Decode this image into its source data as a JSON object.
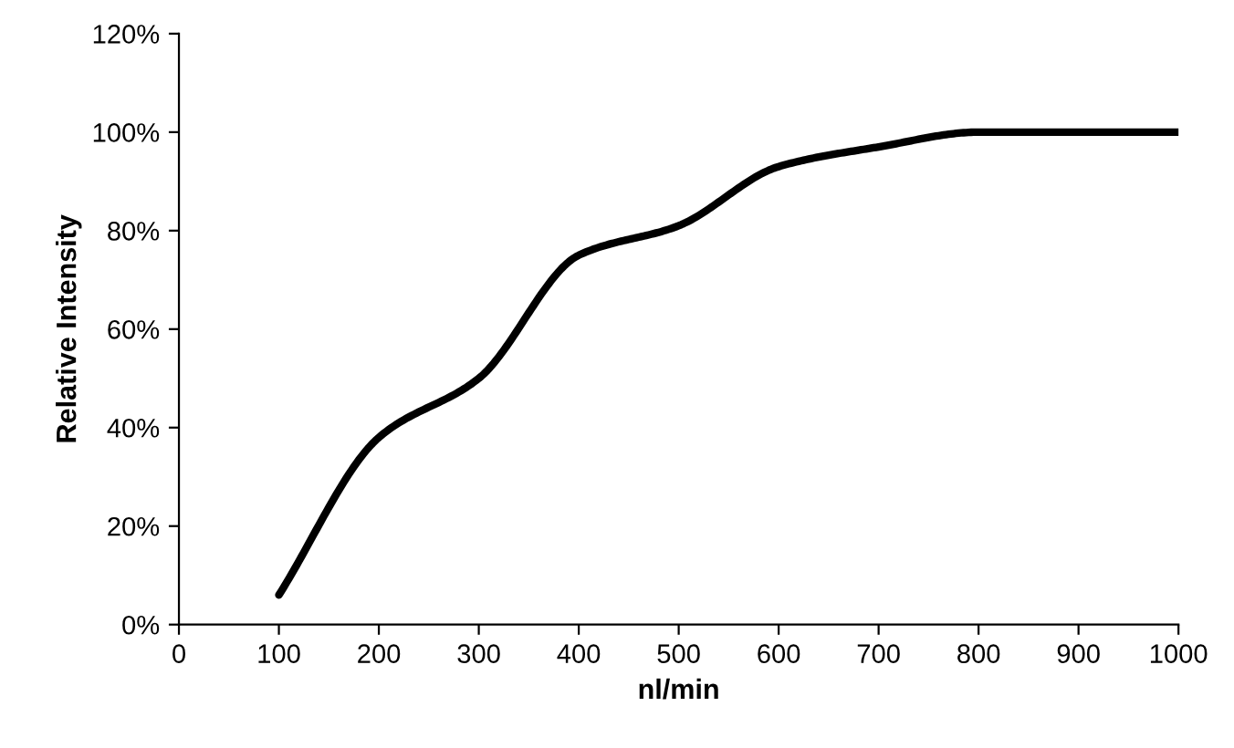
{
  "chart_data": {
    "type": "line",
    "xlabel": "nl/min",
    "ylabel": "Relative Intensity",
    "x": [
      100,
      200,
      300,
      400,
      500,
      600,
      700,
      800,
      900,
      1000
    ],
    "series": [
      {
        "color": "#000000",
        "values": [
          6,
          38,
          50,
          75,
          81,
          93,
          97,
          100,
          100,
          100
        ]
      }
    ],
    "xlim": [
      0,
      1000
    ],
    "xticks": [
      0,
      100,
      200,
      300,
      400,
      500,
      600,
      700,
      800,
      900,
      1000
    ],
    "ylim": [
      0,
      120
    ],
    "yticks": [
      {
        "value": 0,
        "label": "0%"
      },
      {
        "value": 20,
        "label": "20%"
      },
      {
        "value": 40,
        "label": "40%"
      },
      {
        "value": 60,
        "label": "60%"
      },
      {
        "value": 80,
        "label": "80%"
      },
      {
        "value": 100,
        "label": "100%"
      },
      {
        "value": 120,
        "label": "120%"
      }
    ],
    "grid": false,
    "legend": false,
    "marker": "none",
    "line_style": "solid"
  }
}
